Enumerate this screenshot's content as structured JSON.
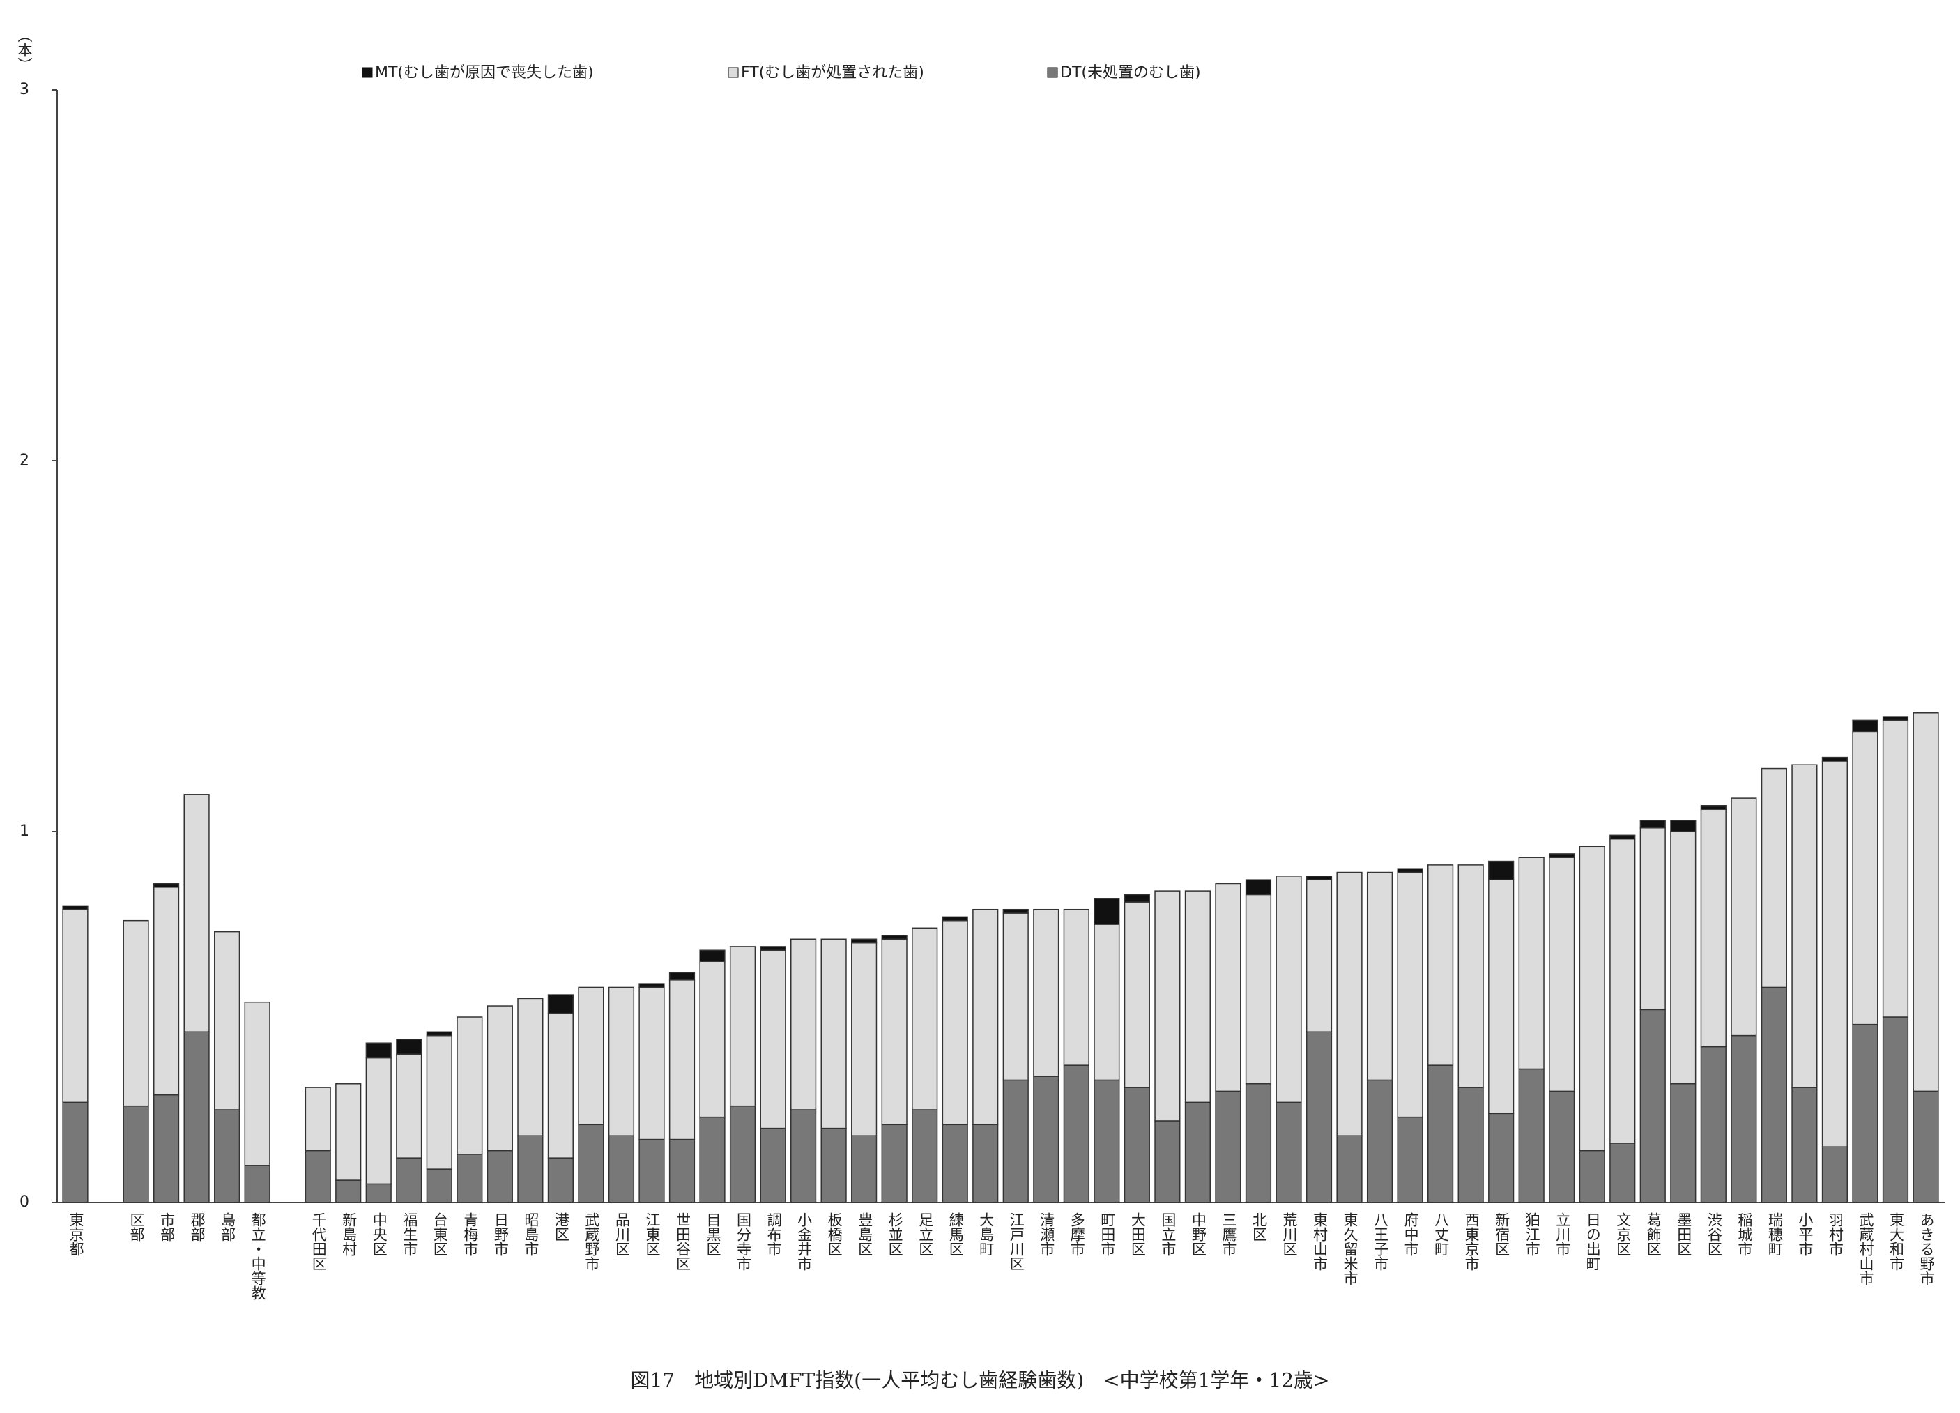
{
  "chart_data": {
    "type": "stacked-bar",
    "title": "図17　地域別DMFT指数(一人平均むし歯経験歯数)　<中学校第1学年・12歳>",
    "y_label": "（本）",
    "categories": [
      "東京都",
      null,
      "区部",
      "市部",
      "郡部",
      "島部",
      "都立・中等教",
      null,
      "千代田区",
      "新島村",
      "中央区",
      "福生市",
      "台東区",
      "青梅市",
      "日野市",
      "昭島市",
      "港区",
      "武蔵野市",
      "品川区",
      "江東区",
      "世田谷区",
      "目黒区",
      "国分寺市",
      "調布市",
      "小金井市",
      "板橋区",
      "豊島区",
      "杉並区",
      "足立区",
      "練馬区",
      "大島町",
      "江戸川区",
      "清瀬市",
      "多摩市",
      "町田市",
      "大田区",
      "国立市",
      "中野区",
      "三鷹市",
      "北区",
      "荒川区",
      "東村山市",
      "東久留米市",
      "八王子市",
      "府中市",
      "八丈町",
      "西東京市",
      "新宿区",
      "狛江市",
      "立川市",
      "日の出町",
      "文京区",
      "葛飾区",
      "墨田区",
      "渋谷区",
      "稲城市",
      "瑞穂町",
      "小平市",
      "羽村市",
      "武蔵村山市",
      "東大和市",
      "あきる野市"
    ],
    "series": [
      {
        "name": "MT(むし歯が原因で喪失した歯)",
        "color": "#111111",
        "values": [
          0.01,
          null,
          0,
          0.01,
          0,
          0,
          0,
          null,
          0,
          0,
          0.04,
          0.04,
          0.01,
          0,
          0,
          0,
          0.05,
          0,
          0,
          0.01,
          0.02,
          0.03,
          0,
          0.01,
          0,
          0,
          0.01,
          0.01,
          0,
          0.01,
          0,
          0.01,
          0,
          0,
          0.07,
          0.02,
          0,
          0,
          0,
          0.04,
          0,
          0.01,
          0,
          0,
          0.01,
          0,
          0,
          0.05,
          0,
          0.01,
          0,
          0.01,
          0.02,
          0.03,
          0.01,
          0,
          0,
          0,
          0.01,
          0.03,
          0.01,
          0
        ]
      },
      {
        "name": "FT(むし歯が処置された歯)",
        "color": "#dcdcdc",
        "values": [
          0.52,
          null,
          0.5,
          0.56,
          0.64,
          0.48,
          0.44,
          null,
          0.17,
          0.26,
          0.34,
          0.28,
          0.36,
          0.37,
          0.39,
          0.37,
          0.39,
          0.37,
          0.4,
          0.41,
          0.43,
          0.42,
          0.43,
          0.48,
          0.46,
          0.51,
          0.52,
          0.5,
          0.49,
          0.55,
          0.58,
          0.45,
          0.45,
          0.42,
          0.42,
          0.5,
          0.62,
          0.57,
          0.56,
          0.51,
          0.61,
          0.41,
          0.71,
          0.56,
          0.66,
          0.54,
          0.6,
          0.63,
          0.57,
          0.63,
          0.82,
          0.82,
          0.49,
          0.68,
          0.64,
          0.64,
          0.59,
          0.87,
          1.04,
          0.79,
          0.8,
          1.02
        ]
      },
      {
        "name": "DT(未処置のむし歯)",
        "color": "#787878",
        "values": [
          0.27,
          null,
          0.26,
          0.29,
          0.46,
          0.25,
          0.1,
          null,
          0.14,
          0.06,
          0.05,
          0.12,
          0.09,
          0.13,
          0.14,
          0.18,
          0.12,
          0.21,
          0.18,
          0.17,
          0.17,
          0.23,
          0.26,
          0.2,
          0.25,
          0.2,
          0.18,
          0.21,
          0.25,
          0.21,
          0.21,
          0.33,
          0.34,
          0.37,
          0.33,
          0.31,
          0.22,
          0.27,
          0.3,
          0.32,
          0.27,
          0.46,
          0.18,
          0.33,
          0.23,
          0.37,
          0.31,
          0.24,
          0.36,
          0.3,
          0.14,
          0.16,
          0.52,
          0.32,
          0.42,
          0.45,
          0.58,
          0.31,
          0.15,
          0.48,
          0.5,
          0.3
        ]
      }
    ],
    "ylim": [
      0,
      3
    ],
    "yticks": [
      0,
      1,
      2,
      3
    ],
    "grid": false
  }
}
